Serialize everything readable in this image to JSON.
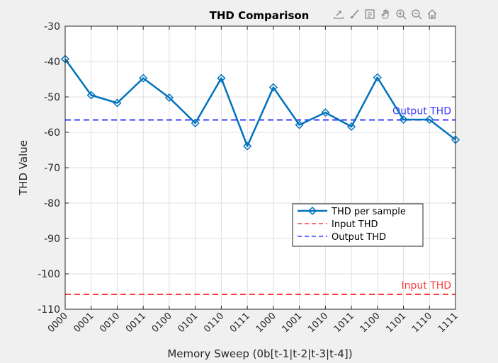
{
  "chart_data": {
    "type": "line",
    "title": "THD Comparison",
    "xlabel": "Memory Sweep (0b[t-1|t-2|t-3|t-4])",
    "ylabel": "THD Value",
    "categories": [
      "0000",
      "0001",
      "0010",
      "0011",
      "0100",
      "0101",
      "0110",
      "0111",
      "1000",
      "1001",
      "1010",
      "1011",
      "1100",
      "1101",
      "1110",
      "1111"
    ],
    "ylim": [
      -110,
      -30
    ],
    "yticks": [
      -30,
      -40,
      -50,
      -60,
      -70,
      -80,
      -90,
      -100,
      -110
    ],
    "grid": true,
    "legend_position": "lower-right",
    "series": [
      {
        "name": "THD per sample",
        "values": [
          -39.3,
          -49.5,
          -51.7,
          -44.7,
          -50.2,
          -57.4,
          -44.7,
          -63.9,
          -47.3,
          -57.9,
          -54.4,
          -58.4,
          -44.5,
          -56.4,
          -56.4,
          -62.1
        ],
        "color": "#0072bd",
        "style": "solid",
        "marker": "diamond"
      }
    ],
    "reference_lines": [
      {
        "name": "Input THD",
        "value": -105.8,
        "color": "#ff3b3b",
        "style": "dashed",
        "label": "Input THD"
      },
      {
        "name": "Output THD",
        "value": -56.5,
        "color": "#3b3bff",
        "style": "dashed",
        "label": "Output THD"
      }
    ]
  },
  "toolbar": {
    "icons": [
      "export-icon",
      "brush-icon",
      "data-tips-icon",
      "pan-icon",
      "zoom-in-icon",
      "zoom-out-icon",
      "home-icon"
    ]
  }
}
